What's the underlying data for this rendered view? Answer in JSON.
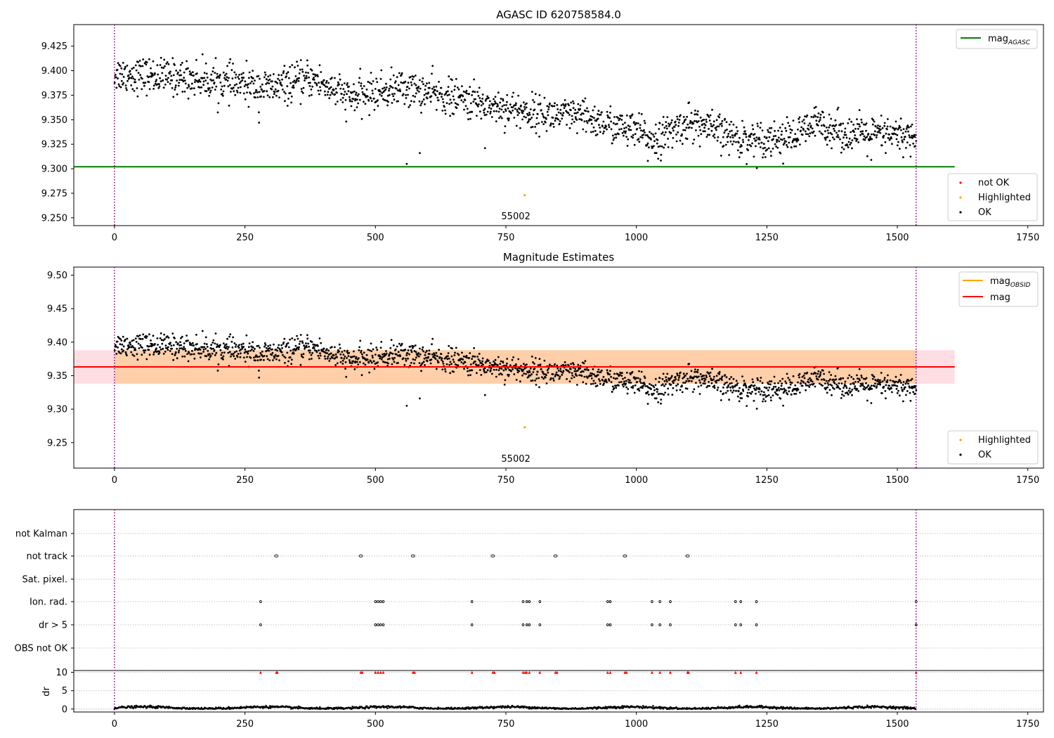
{
  "chart_data": [
    {
      "type": "scatter",
      "title": "AGASC ID 620758584.0",
      "xlim": [
        -78,
        1780
      ],
      "ylim": [
        9.242,
        9.447
      ],
      "xticks": [
        0,
        250,
        500,
        750,
        1000,
        1250,
        1500,
        1750
      ],
      "yticks": [
        "9.250",
        "9.275",
        "9.300",
        "9.325",
        "9.350",
        "9.375",
        "9.400",
        "9.425"
      ],
      "vlines": [
        0,
        1536
      ],
      "mag_agasc": 9.302,
      "obsid_annotation": {
        "text": "55002",
        "x": 769
      },
      "highlighted_points": [
        {
          "x": 786,
          "y": 9.273
        }
      ],
      "outlier_points": [
        {
          "x": 560,
          "y": 9.305
        },
        {
          "x": 585,
          "y": 9.316
        },
        {
          "x": 710,
          "y": 9.321
        },
        {
          "x": 277,
          "y": 9.347
        },
        {
          "x": 1450,
          "y": 9.309
        },
        {
          "x": 1022,
          "y": 9.308
        }
      ],
      "ok_trend": [
        {
          "x": 0,
          "y": 9.397
        },
        {
          "x": 150,
          "y": 9.392
        },
        {
          "x": 300,
          "y": 9.382
        },
        {
          "x": 380,
          "y": 9.392
        },
        {
          "x": 450,
          "y": 9.372
        },
        {
          "x": 550,
          "y": 9.383
        },
        {
          "x": 650,
          "y": 9.372
        },
        {
          "x": 750,
          "y": 9.362
        },
        {
          "x": 800,
          "y": 9.357
        },
        {
          "x": 900,
          "y": 9.352
        },
        {
          "x": 1000,
          "y": 9.337
        },
        {
          "x": 1040,
          "y": 9.33
        },
        {
          "x": 1100,
          "y": 9.348
        },
        {
          "x": 1200,
          "y": 9.33
        },
        {
          "x": 1300,
          "y": 9.332
        },
        {
          "x": 1350,
          "y": 9.347
        },
        {
          "x": 1400,
          "y": 9.336
        },
        {
          "x": 1536,
          "y": 9.333
        }
      ],
      "ok_scatter_sd": 0.009,
      "legend_lines": [
        {
          "label": "mag",
          "sub": "AGASC",
          "color": "#008000"
        }
      ],
      "legend_points": [
        {
          "label": "not OK",
          "color": "#ff0000"
        },
        {
          "label": "Highlighted",
          "color": "#ffa500"
        },
        {
          "label": "OK",
          "color": "#000000"
        }
      ]
    },
    {
      "type": "scatter",
      "title": "Magnitude Estimates",
      "xlim": [
        -78,
        1780
      ],
      "ylim": [
        9.212,
        9.512
      ],
      "xticks": [
        0,
        250,
        500,
        750,
        1000,
        1250,
        1500,
        1750
      ],
      "yticks": [
        "9.25",
        "9.30",
        "9.35",
        "9.40",
        "9.45",
        "9.50"
      ],
      "vlines": [
        0,
        1536
      ],
      "mag": 9.363,
      "mag_band_outer": [
        9.338,
        9.388
      ],
      "mag_obsid": 9.363,
      "mag_obsid_band": [
        9.338,
        9.388
      ],
      "band_xrange": [
        0,
        1610
      ],
      "obsid_annotation": {
        "text": "55002",
        "x": 769
      },
      "legend_lines": [
        {
          "label": "mag",
          "sub": "OBSID",
          "color": "#ffa500"
        },
        {
          "label": "mag",
          "sub": "",
          "color": "#ff0000"
        }
      ],
      "legend_points": [
        {
          "label": "Highlighted",
          "color": "#ffa500"
        },
        {
          "label": "OK",
          "color": "#000000"
        }
      ]
    },
    {
      "type": "scatter",
      "title": "",
      "flag_labels": [
        "not Kalman",
        "not track",
        "Sat. pixel.",
        "Ion. rad.",
        "dr > 5",
        "OBS not OK"
      ],
      "not_track_x": [
        310,
        472,
        572,
        725,
        845,
        978,
        1098
      ],
      "ion_rad_x": [
        280,
        500,
        505,
        510,
        515,
        685,
        783,
        790,
        795,
        815,
        945,
        950,
        1030,
        1045,
        1065,
        1190,
        1200,
        1230,
        1536
      ],
      "dr_gt5_x": [
        280,
        500,
        505,
        510,
        515,
        685,
        783,
        790,
        795,
        815,
        945,
        950,
        1030,
        1045,
        1065,
        1190,
        1200,
        1230,
        1536
      ],
      "dr_clipped_x": [
        280,
        310,
        312,
        472,
        475,
        500,
        505,
        510,
        515,
        572,
        575,
        685,
        725,
        728,
        783,
        787,
        790,
        795,
        815,
        845,
        848,
        945,
        950,
        978,
        981,
        1030,
        1045,
        1065,
        1098,
        1100,
        1190,
        1200,
        1230,
        1536
      ],
      "dr_ylabel": "dr",
      "dr_yticks": [
        "0",
        "5",
        "10"
      ],
      "dr_ylim": [
        -0.8,
        10.5
      ],
      "xticks": [
        0,
        250,
        500,
        750,
        1000,
        1250,
        1500,
        1750
      ],
      "vlines": [
        0,
        1536
      ]
    }
  ]
}
